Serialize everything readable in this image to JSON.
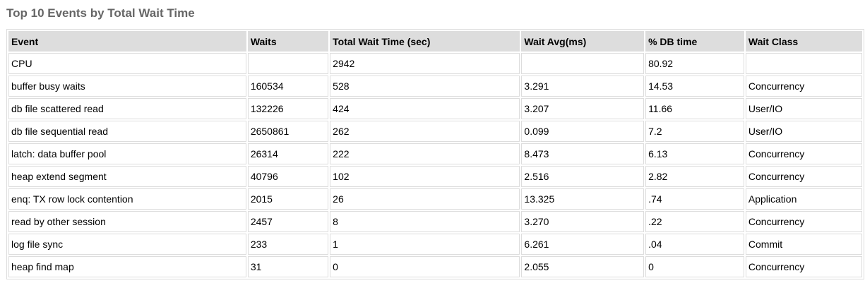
{
  "title": "Top 10 Events by Total Wait Time",
  "columns": [
    "Event",
    "Waits",
    "Total Wait Time (sec)",
    "Wait Avg(ms)",
    "% DB time",
    "Wait Class"
  ],
  "rows": [
    [
      "CPU",
      "",
      "2942",
      "",
      "80.92",
      ""
    ],
    [
      "buffer busy waits",
      "160534",
      "528",
      "3.291",
      "14.53",
      "Concurrency"
    ],
    [
      "db file scattered read",
      "132226",
      "424",
      "3.207",
      "11.66",
      "User/IO"
    ],
    [
      "db file sequential read",
      "2650861",
      "262",
      "0.099",
      "7.2",
      "User/IO"
    ],
    [
      "latch: data buffer pool",
      "26314",
      "222",
      "8.473",
      "6.13",
      "Concurrency"
    ],
    [
      "heap extend segment",
      "40796",
      "102",
      "2.516",
      "2.82",
      "Concurrency"
    ],
    [
      "enq: TX row lock contention",
      "2015",
      "26",
      "13.325",
      ".74",
      "Application"
    ],
    [
      "read by other session",
      "2457",
      "8",
      "3.270",
      ".22",
      "Concurrency"
    ],
    [
      "log file sync",
      "233",
      "1",
      "6.261",
      ".04",
      "Commit"
    ],
    [
      "heap find map",
      "31",
      "0",
      "2.055",
      "0",
      "Concurrency"
    ]
  ]
}
